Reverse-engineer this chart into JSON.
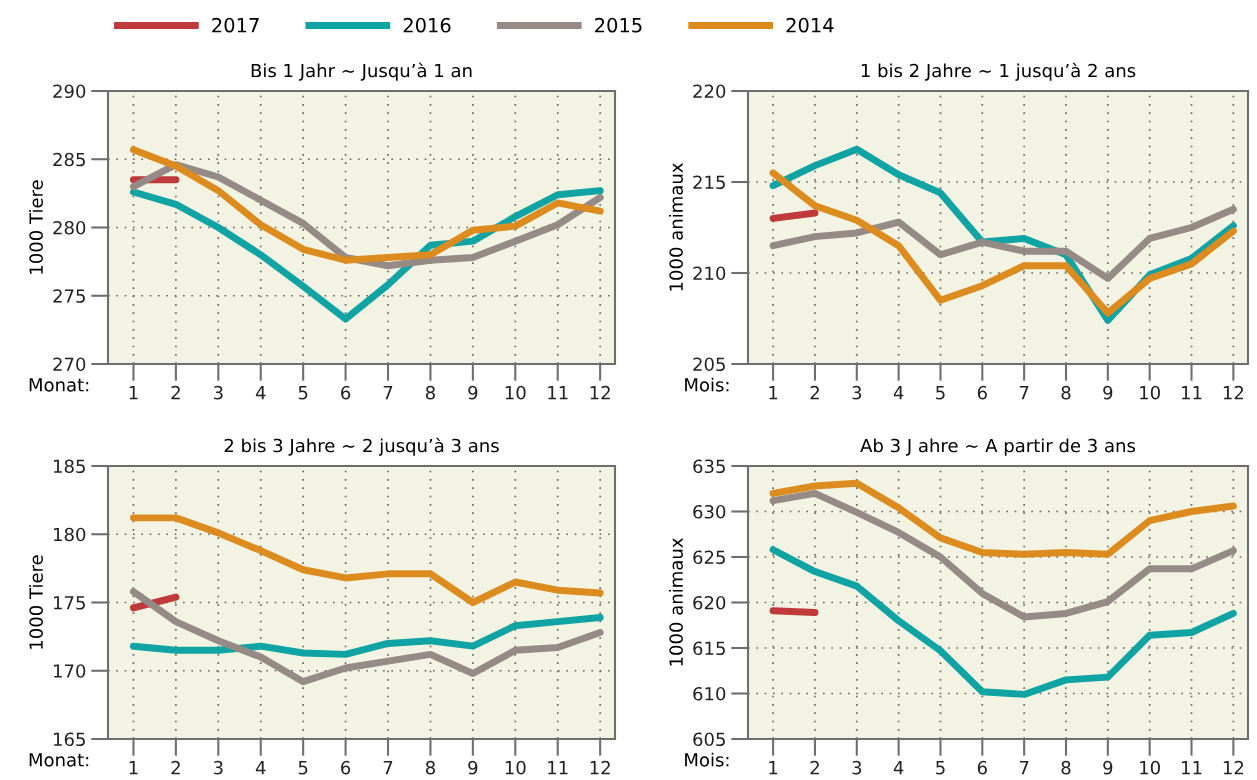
{
  "chart_data": [
    {
      "type": "line",
      "title": "Bis 1 Jahr ~ Jusqu’à 1 an",
      "xlabel": "Monat:",
      "ylabel": "1000 Tiere",
      "categories": [
        "1",
        "2",
        "3",
        "4",
        "5",
        "6",
        "7",
        "8",
        "9",
        "10",
        "11",
        "12"
      ],
      "ylim": [
        270,
        290
      ],
      "yticks": [
        270,
        275,
        280,
        285,
        290
      ],
      "grid": true,
      "legend": "top",
      "line_style": "solid",
      "series": [
        {
          "name": "2017",
          "color": "#c0393b",
          "values": [
            283.5,
            283.5,
            null,
            null,
            null,
            null,
            null,
            null,
            null,
            null,
            null,
            null
          ]
        },
        {
          "name": "2016",
          "color": "#10a3a3",
          "values": [
            282.6,
            281.7,
            280,
            278,
            275.7,
            273.3,
            275.8,
            278.7,
            279,
            280.8,
            282.4,
            282.7
          ]
        },
        {
          "name": "2015",
          "color": "#958a85",
          "values": [
            283,
            284.6,
            283.7,
            282,
            280.3,
            277.8,
            277.2,
            277.6,
            277.8,
            279,
            280.2,
            282.2
          ]
        },
        {
          "name": "2014",
          "color": "#dc8c1e",
          "values": [
            285.7,
            284.5,
            282.7,
            280.2,
            278.4,
            277.6,
            277.8,
            278,
            279.8,
            280.1,
            281.8,
            281.2
          ]
        }
      ]
    },
    {
      "type": "line",
      "title": "1 bis 2 Jahre ~ 1 jusqu’à 2 ans",
      "xlabel": "Mois:",
      "ylabel": "1000 animaux",
      "categories": [
        "1",
        "2",
        "3",
        "4",
        "5",
        "6",
        "7",
        "8",
        "9",
        "10",
        "11",
        "12"
      ],
      "ylim": [
        205,
        220
      ],
      "yticks": [
        205,
        210,
        215,
        220
      ],
      "grid": true,
      "line_style": "solid",
      "series": [
        {
          "name": "2017",
          "color": "#c0393b",
          "values": [
            213,
            213.3,
            null,
            null,
            null,
            null,
            null,
            null,
            null,
            null,
            null,
            null
          ]
        },
        {
          "name": "2016",
          "color": "#10a3a3",
          "values": [
            214.8,
            215.9,
            216.8,
            215.4,
            214.4,
            211.7,
            211.9,
            211,
            207.4,
            209.9,
            210.8,
            212.6
          ]
        },
        {
          "name": "2015",
          "color": "#958a85",
          "values": [
            211.5,
            212,
            212.2,
            212.8,
            211,
            211.7,
            211.2,
            211.2,
            209.7,
            211.9,
            212.5,
            213.5
          ]
        },
        {
          "name": "2014",
          "color": "#dc8c1e",
          "values": [
            215.5,
            213.7,
            212.9,
            211.5,
            208.5,
            209.3,
            210.4,
            210.4,
            207.8,
            209.7,
            210.5,
            212.3
          ]
        }
      ]
    },
    {
      "type": "line",
      "title": "2 bis 3 Jahre ~ 2 jusqu’à 3 ans",
      "xlabel": "Monat:",
      "ylabel": "1000 Tiere",
      "categories": [
        "1",
        "2",
        "3",
        "4",
        "5",
        "6",
        "7",
        "8",
        "9",
        "10",
        "11",
        "12"
      ],
      "ylim": [
        165,
        185
      ],
      "yticks": [
        165,
        170,
        175,
        180,
        185
      ],
      "grid": true,
      "line_style": "solid",
      "series": [
        {
          "name": "2017",
          "color": "#c0393b",
          "values": [
            174.6,
            175.4,
            null,
            null,
            null,
            null,
            null,
            null,
            null,
            null,
            null,
            null
          ]
        },
        {
          "name": "2016",
          "color": "#10a3a3",
          "values": [
            171.8,
            171.5,
            171.5,
            171.8,
            171.3,
            171.2,
            172,
            172.2,
            171.8,
            173.3,
            173.6,
            173.9
          ]
        },
        {
          "name": "2015",
          "color": "#958a85",
          "values": [
            175.8,
            173.6,
            172.2,
            171,
            169.2,
            170.2,
            170.7,
            171.2,
            169.8,
            171.5,
            171.7,
            172.8
          ]
        },
        {
          "name": "2014",
          "color": "#dc8c1e",
          "values": [
            181.2,
            181.2,
            180.1,
            178.8,
            177.4,
            176.8,
            177.1,
            177.1,
            175,
            176.5,
            175.9,
            175.7
          ]
        }
      ]
    },
    {
      "type": "line",
      "title": "Ab 3 J ahre ~ A partir de 3 ans",
      "xlabel": "Mois:",
      "ylabel": "1000 animaux",
      "categories": [
        "1",
        "2",
        "3",
        "4",
        "5",
        "6",
        "7",
        "8",
        "9",
        "10",
        "11",
        "12"
      ],
      "ylim": [
        605,
        635
      ],
      "yticks": [
        605,
        610,
        615,
        620,
        625,
        630,
        635
      ],
      "grid": true,
      "line_style": "solid",
      "series": [
        {
          "name": "2017",
          "color": "#c0393b",
          "values": [
            619.1,
            618.9,
            null,
            null,
            null,
            null,
            null,
            null,
            null,
            null,
            null,
            null
          ]
        },
        {
          "name": "2016",
          "color": "#10a3a3",
          "values": [
            625.8,
            623.4,
            621.8,
            618,
            614.7,
            610.2,
            609.9,
            611.5,
            611.8,
            616.4,
            616.7,
            618.8
          ]
        },
        {
          "name": "2015",
          "color": "#958a85",
          "values": [
            631.2,
            632,
            629.9,
            627.7,
            625,
            621,
            618.4,
            618.8,
            620.1,
            623.7,
            623.7,
            625.7
          ]
        },
        {
          "name": "2014",
          "color": "#dc8c1e",
          "values": [
            632,
            632.8,
            633.1,
            630.4,
            627.1,
            625.5,
            625.3,
            625.5,
            625.3,
            629,
            630,
            630.6
          ]
        }
      ]
    }
  ]
}
